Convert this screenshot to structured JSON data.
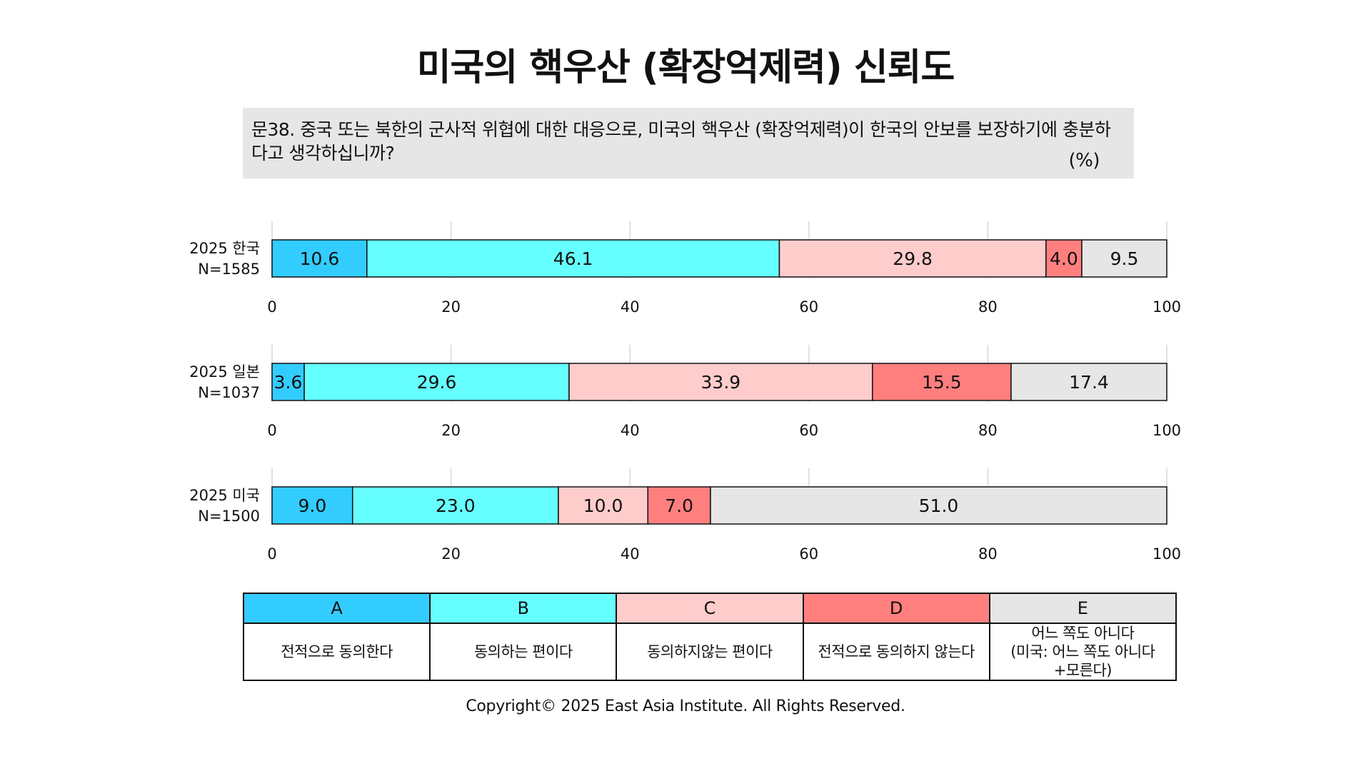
{
  "title": "미국의 핵우산 (확장억제력) 신뢰도",
  "question": "문38. 중국 또는 북한의 군사적 위협에 대한 대응으로, 미국의 핵우산 (확장억제력)이 한국의 안보를 보장하기에 충분하다고 생각하십니까?",
  "unit": "(%)",
  "colors": {
    "A": "#33ccff",
    "B": "#66ffff",
    "C": "#ffcccc",
    "D": "#ff7f7f",
    "E": "#e6e6e6"
  },
  "legend": [
    {
      "code": "A",
      "label": "전적으로 동의한다"
    },
    {
      "code": "B",
      "label": "동의하는 편이다"
    },
    {
      "code": "C",
      "label": "동의하지않는 편이다"
    },
    {
      "code": "D",
      "label": "전적으로 동의하지 않는다"
    },
    {
      "code": "E",
      "label_lines": [
        "어느 쪽도 아니다",
        "(미국: 어느 쪽도 아니다",
        "+모른다)"
      ]
    }
  ],
  "chart_data": {
    "type": "bar",
    "orientation": "horizontal-stacked",
    "xlim": [
      0,
      100
    ],
    "xticks": [
      0,
      20,
      40,
      60,
      80,
      100
    ],
    "grid": true,
    "categories": [
      {
        "line1": "2025 한국",
        "line2": "N=1585"
      },
      {
        "line1": "2025 일본",
        "line2": "N=1037"
      },
      {
        "line1": "2025 미국",
        "line2": "N=1500"
      }
    ],
    "series": [
      {
        "code": "A",
        "values": [
          10.6,
          3.6,
          9.0
        ]
      },
      {
        "code": "B",
        "values": [
          46.1,
          29.6,
          23.0
        ]
      },
      {
        "code": "C",
        "values": [
          29.8,
          33.9,
          10.0
        ]
      },
      {
        "code": "D",
        "values": [
          4.0,
          15.5,
          7.0
        ]
      },
      {
        "code": "E",
        "values": [
          9.5,
          17.4,
          51.0
        ]
      }
    ]
  },
  "copyright": "Copyright© 2025 East Asia Institute. All Rights Reserved."
}
